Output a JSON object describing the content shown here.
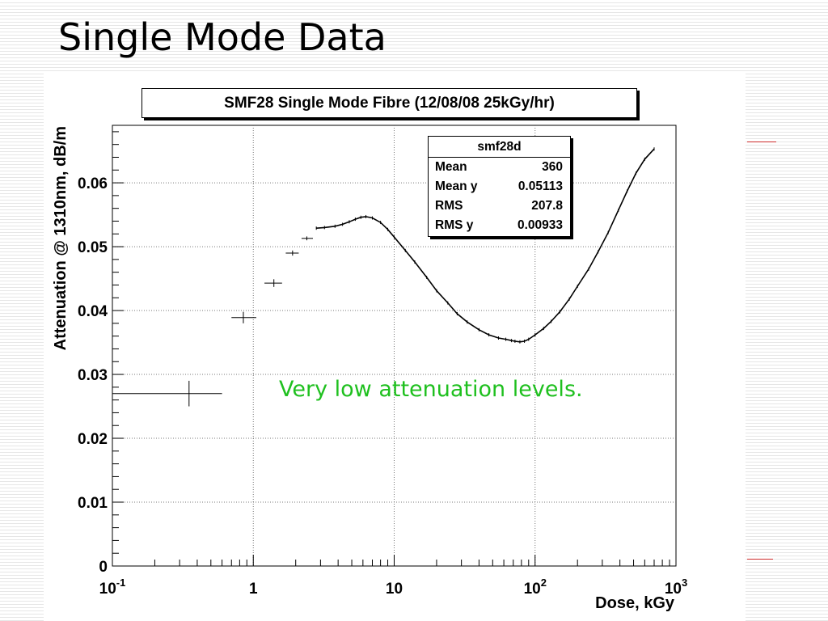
{
  "slide": {
    "title": "Single Mode Data",
    "annotation": "Very low attenuation levels."
  },
  "colors": {
    "annotation": "#1fc01f",
    "accent_lines": "#cc2a2a",
    "background_stripes": "#e6e6e6"
  },
  "stats_box": {
    "name": "smf28d",
    "rows": [
      {
        "label": "Mean",
        "value": "360"
      },
      {
        "label": "Mean y",
        "value": "0.05113"
      },
      {
        "label": "RMS",
        "value": "207.8"
      },
      {
        "label": "RMS y",
        "value": "0.00933"
      }
    ]
  },
  "chart_data": {
    "type": "scatter",
    "title": "SMF28 Single Mode Fibre (12/08/08 25kGy/hr)",
    "xlabel": "Dose, kGy",
    "ylabel": "Attenuation @ 1310nm, dB/m",
    "x_scale": "log",
    "xlim": [
      0.1,
      1000
    ],
    "ylim": [
      0,
      0.069
    ],
    "x_tick_labels": [
      {
        "value": 0.1,
        "base": "10",
        "exp": "-1"
      },
      {
        "value": 1,
        "base": "1",
        "exp": ""
      },
      {
        "value": 10,
        "base": "10",
        "exp": ""
      },
      {
        "value": 100,
        "base": "10",
        "exp": "2"
      },
      {
        "value": 1000,
        "base": "10",
        "exp": "3"
      }
    ],
    "y_tick_labels": [
      "0",
      "0.01",
      "0.02",
      "0.03",
      "0.04",
      "0.05",
      "0.06"
    ],
    "y_ticks": [
      0,
      0.01,
      0.02,
      0.03,
      0.04,
      0.05,
      0.06
    ],
    "grid": true,
    "error_bar_points": [
      {
        "x": 0.35,
        "xlo": 0.1,
        "xhi": 0.6,
        "y": 0.027,
        "yerr": 0.002
      },
      {
        "x": 0.85,
        "xlo": 0.7,
        "xhi": 1.05,
        "y": 0.0389,
        "yerr": 0.0009
      },
      {
        "x": 1.4,
        "xlo": 1.2,
        "xhi": 1.6,
        "y": 0.0443,
        "yerr": 0.0006
      },
      {
        "x": 1.9,
        "xlo": 1.7,
        "xhi": 2.1,
        "y": 0.049,
        "yerr": 0.0004
      },
      {
        "x": 2.4,
        "xlo": 2.2,
        "xhi": 2.65,
        "y": 0.0513,
        "yerr": 0.0003
      }
    ],
    "series": [
      {
        "x": [
          2.8,
          3.2,
          3.8,
          4.3,
          4.8,
          5.3,
          5.8,
          6.3,
          7.0,
          8.0,
          9.0,
          10,
          12,
          14,
          17,
          20,
          24,
          28,
          33,
          40,
          47,
          55,
          62,
          68,
          72,
          78,
          84,
          90,
          100,
          115,
          130,
          150,
          175,
          200,
          240,
          280,
          330,
          390,
          450,
          520,
          600,
          700
        ],
        "y": [
          0.0529,
          0.053,
          0.0532,
          0.0535,
          0.0539,
          0.0543,
          0.0546,
          0.0547,
          0.0545,
          0.0538,
          0.0527,
          0.0515,
          0.0494,
          0.0476,
          0.0452,
          0.0431,
          0.0412,
          0.0395,
          0.0382,
          0.037,
          0.0362,
          0.0357,
          0.0355,
          0.0353,
          0.0352,
          0.0351,
          0.0352,
          0.0355,
          0.0362,
          0.0372,
          0.0383,
          0.0398,
          0.0418,
          0.0438,
          0.0465,
          0.0492,
          0.0522,
          0.0557,
          0.0587,
          0.0615,
          0.0637,
          0.0653
        ]
      }
    ]
  }
}
